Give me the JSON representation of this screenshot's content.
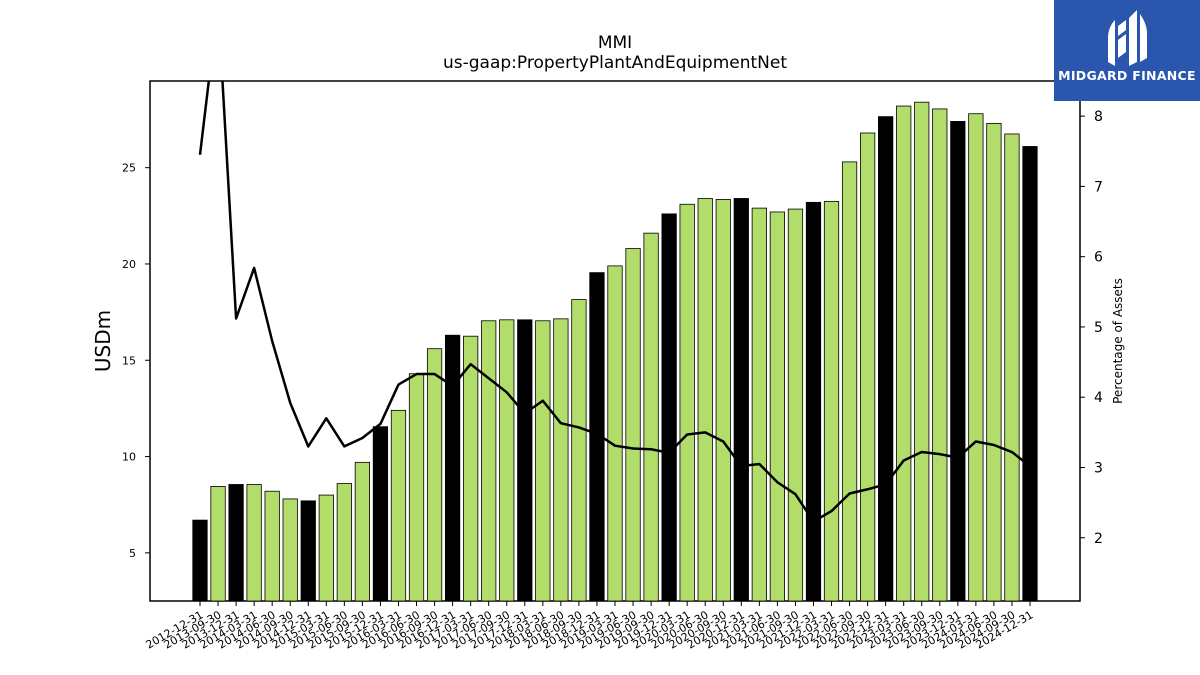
{
  "header": {
    "title": "MMI",
    "subtitle": "us-gaap:PropertyPlantAndEquipmentNet"
  },
  "logo": {
    "text": "MIDGARD FINANCE",
    "icon": "midgard-logo-icon",
    "background": "#2a56ad"
  },
  "chart_data": {
    "type": "bar",
    "ylabel": "USDm",
    "y2label": "Percentage of Assets",
    "ylim": [
      2.5,
      29.5
    ],
    "y2lim": [
      1.1,
      8.5
    ],
    "yticks": [
      5,
      10,
      15,
      20,
      25
    ],
    "y2ticks": [
      2,
      3,
      4,
      5,
      6,
      7,
      8
    ],
    "colors": {
      "quarter_bar": "#b3dd6b",
      "year_end_bar": "#000000",
      "line": "#000000"
    },
    "categories": [
      "2012-12-31",
      "2013-09-30",
      "2013-12-31",
      "2014-03-31",
      "2014-06-30",
      "2014-09-30",
      "2014-12-31",
      "2015-03-31",
      "2015-06-30",
      "2015-09-30",
      "2015-12-31",
      "2016-03-31",
      "2016-06-30",
      "2016-09-30",
      "2016-12-31",
      "2017-03-31",
      "2017-06-30",
      "2017-09-30",
      "2017-12-31",
      "2018-03-31",
      "2018-06-30",
      "2018-09-30",
      "2018-12-31",
      "2019-03-31",
      "2019-06-30",
      "2019-09-30",
      "2019-12-31",
      "2020-03-31",
      "2020-06-30",
      "2020-09-30",
      "2020-12-31",
      "2021-03-31",
      "2021-06-30",
      "2021-09-30",
      "2021-12-31",
      "2022-03-31",
      "2022-06-30",
      "2022-09-30",
      "2022-12-31",
      "2023-03-31",
      "2023-06-30",
      "2023-09-30",
      "2023-12-31",
      "2024-03-31",
      "2024-06-30",
      "2024-09-30",
      "2024-12-31"
    ],
    "series": [
      {
        "kind": "bar",
        "axis": "left",
        "values": [
          6.7,
          8.45,
          8.55,
          8.55,
          8.2,
          7.8,
          7.7,
          8.0,
          8.6,
          9.7,
          11.55,
          12.4,
          14.3,
          15.6,
          16.3,
          16.25,
          17.05,
          17.1,
          17.1,
          17.05,
          17.15,
          18.15,
          19.55,
          19.9,
          20.8,
          21.6,
          22.6,
          23.1,
          23.4,
          23.35,
          23.4,
          22.9,
          22.7,
          22.85,
          23.2,
          23.25,
          25.3,
          26.8,
          27.65,
          28.2,
          28.4,
          28.05,
          27.4,
          27.8,
          27.3,
          26.75,
          26.1
        ],
        "year_end": [
          true,
          false,
          true,
          false,
          false,
          false,
          true,
          false,
          false,
          false,
          true,
          false,
          false,
          false,
          true,
          false,
          false,
          false,
          true,
          false,
          false,
          false,
          true,
          false,
          false,
          false,
          true,
          false,
          false,
          false,
          true,
          false,
          false,
          false,
          true,
          false,
          false,
          false,
          true,
          false,
          false,
          false,
          true,
          false,
          false,
          false,
          true
        ]
      },
      {
        "kind": "line",
        "axis": "right",
        "values": [
          7.45,
          9.6,
          5.12,
          5.84,
          4.8,
          3.92,
          3.3,
          3.7,
          3.3,
          3.42,
          3.62,
          4.18,
          4.33,
          4.33,
          4.16,
          4.47,
          4.27,
          4.07,
          3.77,
          3.95,
          3.63,
          3.57,
          3.48,
          3.31,
          3.27,
          3.26,
          3.21,
          3.47,
          3.5,
          3.37,
          3.02,
          3.05,
          2.79,
          2.62,
          2.23,
          2.38,
          2.63,
          2.69,
          2.76,
          3.1,
          3.22,
          3.19,
          3.14,
          3.37,
          3.32,
          3.22,
          3.02
        ]
      }
    ]
  }
}
